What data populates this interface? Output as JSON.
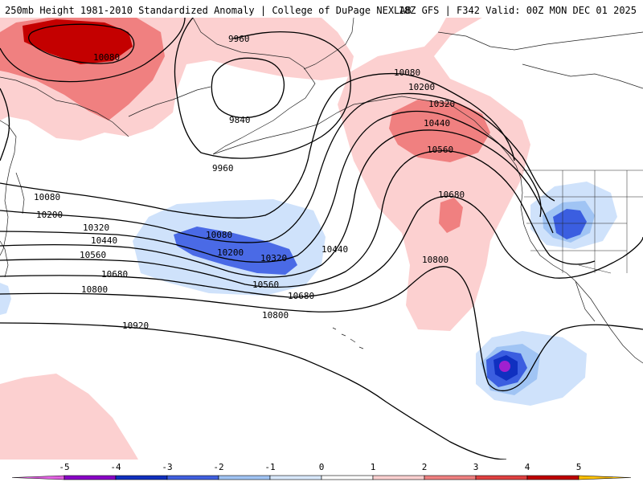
{
  "title": {
    "left": "250mb Height 1981-2010 Standardized Anomaly | College of DuPage NEXLAB",
    "right": "18Z GFS | F342 Valid: 00Z MON DEC 01 2025"
  },
  "contour_labels": {
    "l10080_nw": "10080",
    "l9960_a": "9960",
    "l9840": "9840",
    "l9960_b": "9960",
    "l10080_gulf": "10080",
    "l10200_gulf": "10200",
    "l10320_gulf": "10320",
    "l10440_gulf": "10440",
    "l10560_gulf": "10560",
    "l10680_mid": "10680",
    "l10800_mid": "10800",
    "l10080_w": "10080",
    "l10200_w": "10200",
    "l10320_w": "10320",
    "l10440_w": "10440",
    "l10560_w": "10560",
    "l10680_w": "10680",
    "l10800_w": "10800",
    "l10920_w": "10920",
    "l10080_low": "10080",
    "l10200_low": "10200",
    "l10320_low": "10320",
    "l10440_low": "10440",
    "l10560_low": "10560",
    "l10680_low": "10680",
    "l10800_low": "10800"
  },
  "legend": {
    "ticks": [
      "-5",
      "-4",
      "-3",
      "-2",
      "-1",
      "0",
      "1",
      "2",
      "3",
      "4",
      "5"
    ],
    "colors": [
      "#e060e0",
      "#8a00c8",
      "#1030c0",
      "#4060e0",
      "#a0c4f4",
      "#d8e8fc",
      "#ffffff",
      "#fcd0d0",
      "#f08080",
      "#e04040",
      "#c00000",
      "#f07800",
      "#ffc000"
    ]
  }
}
